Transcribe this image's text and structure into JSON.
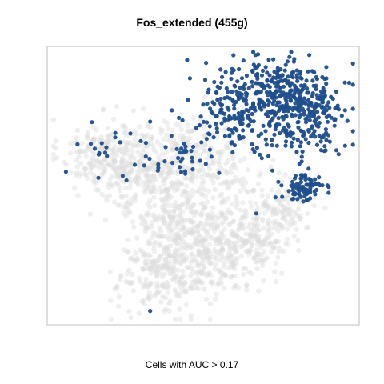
{
  "chart_data": {
    "type": "scatter",
    "title": "Fos_extended (455g)",
    "caption": "Cells with AUC > 0.17",
    "xlabel": "",
    "ylabel": "",
    "grid": false,
    "legend": "none",
    "x_range": [
      0,
      100
    ],
    "y_range": [
      0,
      100
    ],
    "colors": {
      "above_threshold": "#1f4e8c",
      "below_threshold": "#dcdcdc",
      "frame": "#bfbfbf"
    },
    "series": [
      {
        "role": "below_threshold",
        "clusters": [
          {
            "cx": 18,
            "cy": 62,
            "sx": 7,
            "sy": 6,
            "n": 180
          },
          {
            "cx": 32,
            "cy": 56,
            "sx": 9,
            "sy": 8,
            "n": 220
          },
          {
            "cx": 40,
            "cy": 40,
            "sx": 9,
            "sy": 8,
            "n": 180
          },
          {
            "cx": 52,
            "cy": 28,
            "sx": 10,
            "sy": 8,
            "n": 300
          },
          {
            "cx": 38,
            "cy": 18,
            "sx": 8,
            "sy": 7,
            "n": 220
          },
          {
            "cx": 66,
            "cy": 32,
            "sx": 7,
            "sy": 6,
            "n": 150
          },
          {
            "cx": 76,
            "cy": 42,
            "sx": 5,
            "sy": 4,
            "n": 90
          },
          {
            "cx": 46,
            "cy": 62,
            "sx": 7,
            "sy": 6,
            "n": 120
          },
          {
            "cx": 58,
            "cy": 52,
            "sx": 6,
            "sy": 5,
            "n": 80
          }
        ]
      },
      {
        "role": "above_threshold",
        "clusters": [
          {
            "cx": 72,
            "cy": 84,
            "sx": 10,
            "sy": 7,
            "n": 260
          },
          {
            "cx": 82,
            "cy": 74,
            "sx": 7,
            "sy": 8,
            "n": 220
          },
          {
            "cx": 58,
            "cy": 74,
            "sx": 6,
            "sy": 6,
            "n": 110
          },
          {
            "cx": 82,
            "cy": 49,
            "sx": 3.5,
            "sy": 2.5,
            "n": 80
          },
          {
            "cx": 44,
            "cy": 60,
            "sx": 5,
            "sy": 4,
            "n": 30
          },
          {
            "cx": 22,
            "cy": 62,
            "sx": 8,
            "sy": 5,
            "n": 20
          }
        ],
        "outliers": [
          [
            67,
            40
          ],
          [
            33,
            5
          ],
          [
            6,
            55
          ],
          [
            33,
            73
          ],
          [
            30,
            66
          ]
        ]
      }
    ]
  }
}
